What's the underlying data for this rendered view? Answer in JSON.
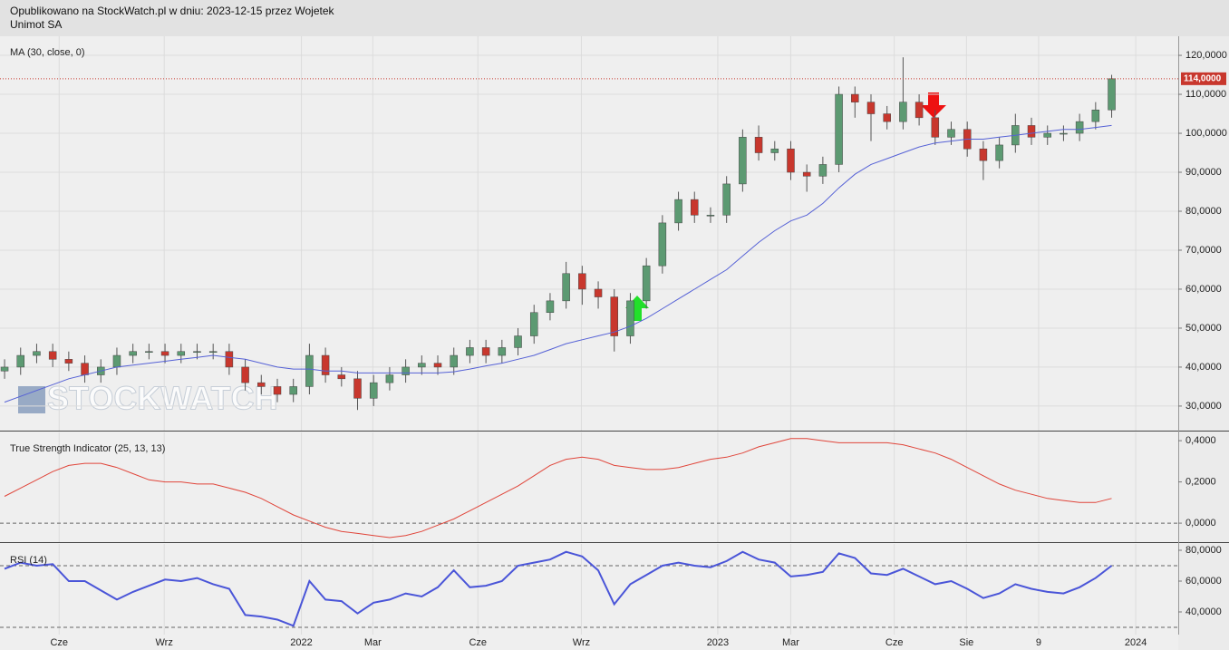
{
  "header": {
    "published": "Opublikowano na StockWatch.pl w dniu: 2023-12-15 przez Wojetek",
    "instrument": "Unimot SA"
  },
  "watermark": "STOCKWATCH",
  "chart_data": [
    {
      "type": "candlestick",
      "title": "MA (30, close, 0)",
      "x": [
        0,
        2,
        4,
        6,
        8,
        10,
        12,
        14,
        16,
        18,
        20,
        22,
        24,
        26,
        28,
        30,
        32,
        34,
        36,
        38,
        40,
        42,
        44,
        46,
        48,
        50,
        52,
        54,
        56,
        58,
        60,
        62,
        64,
        66,
        68,
        70,
        72,
        74,
        76,
        78,
        80,
        82,
        84,
        86,
        88,
        90,
        92,
        94,
        96,
        98,
        100,
        102,
        104,
        106,
        108,
        110,
        112,
        114,
        116,
        118,
        120,
        122,
        124,
        126,
        128,
        130,
        132,
        134,
        136,
        138
      ],
      "open": [
        39000,
        40000,
        43000,
        44000,
        42000,
        41000,
        38000,
        40000,
        43000,
        44000,
        44000,
        43000,
        44000,
        44000,
        44000,
        40000,
        36000,
        35000,
        33000,
        35000,
        43000,
        38000,
        37000,
        32000,
        36000,
        38000,
        40000,
        41000,
        40000,
        43000,
        45000,
        43000,
        45000,
        48000,
        54000,
        57000,
        64000,
        60000,
        58000,
        48000,
        57000,
        66000,
        77000,
        83000,
        79000,
        79000,
        87000,
        99000,
        95000,
        96000,
        90000,
        89000,
        92000,
        110000,
        108000,
        105000,
        103000,
        108000,
        104000,
        99000,
        101000,
        96000,
        93000,
        97000,
        102000,
        99000,
        100000,
        100000,
        103000,
        106000
      ],
      "high": [
        42000,
        45000,
        46000,
        46000,
        44000,
        43000,
        42000,
        45000,
        46000,
        46000,
        46000,
        46000,
        46000,
        46000,
        46000,
        42000,
        38000,
        37000,
        37000,
        46000,
        45000,
        40000,
        39000,
        38000,
        40000,
        42000,
        43000,
        43000,
        45000,
        47000,
        47000,
        47000,
        50000,
        56000,
        59000,
        67000,
        66000,
        62000,
        60000,
        59000,
        68000,
        79000,
        85000,
        85000,
        81000,
        89000,
        101000,
        102000,
        98000,
        98000,
        92000,
        94000,
        112000,
        112000,
        110000,
        107000,
        119500,
        110000,
        106000,
        103000,
        103000,
        98000,
        99000,
        105000,
        104000,
        102000,
        102000,
        105000,
        108000,
        115000
      ],
      "low": [
        37000,
        38000,
        41000,
        40000,
        39000,
        36000,
        36000,
        38000,
        41000,
        42000,
        41000,
        41000,
        42000,
        42000,
        38000,
        34000,
        33000,
        31000,
        31000,
        33000,
        36000,
        35000,
        29000,
        30000,
        34000,
        36000,
        38000,
        38000,
        38000,
        41000,
        41000,
        41000,
        43000,
        46000,
        52000,
        55000,
        56000,
        55000,
        44000,
        46000,
        55000,
        64000,
        75000,
        77000,
        77000,
        77000,
        85000,
        93000,
        93000,
        88000,
        85000,
        87000,
        90000,
        104000,
        98000,
        101000,
        101000,
        102000,
        97000,
        97000,
        94000,
        88000,
        91000,
        95000,
        97000,
        97000,
        98000,
        98000,
        101000,
        104000
      ],
      "close": [
        40000,
        43000,
        44000,
        42000,
        41000,
        38000,
        40000,
        43000,
        44000,
        44000,
        43000,
        44000,
        44000,
        44000,
        40000,
        36000,
        35000,
        33000,
        35000,
        43000,
        38000,
        37000,
        32000,
        36000,
        38000,
        40000,
        41000,
        40000,
        43000,
        45000,
        43000,
        45000,
        48000,
        54000,
        57000,
        64000,
        60000,
        58000,
        48000,
        57000,
        66000,
        77000,
        83000,
        79000,
        79000,
        87000,
        99000,
        95000,
        96000,
        90000,
        89000,
        92000,
        110000,
        108000,
        105000,
        103000,
        108000,
        104000,
        99000,
        101000,
        96000,
        93000,
        97000,
        102000,
        99000,
        100000,
        100000,
        103000,
        106000,
        114000
      ],
      "last_label": "114,0000",
      "up_color": "#5c9a72",
      "down_color": "#c8372d",
      "ma": {
        "color": "#5561d6",
        "values": [
          31000,
          32500,
          34000,
          35500,
          37000,
          38000,
          39000,
          40000,
          40500,
          41000,
          41500,
          42000,
          42500,
          43000,
          42500,
          42000,
          41000,
          40000,
          39500,
          39500,
          39000,
          39000,
          38500,
          38500,
          38500,
          38500,
          38500,
          38500,
          38800,
          39500,
          40300,
          41000,
          42000,
          43000,
          44500,
          46000,
          47000,
          48000,
          49000,
          50500,
          52500,
          55000,
          57500,
          60000,
          62500,
          65000,
          68500,
          72000,
          75000,
          77500,
          79000,
          82000,
          86000,
          89500,
          92000,
          93500,
          95000,
          96500,
          97500,
          98000,
          98500,
          98500,
          99000,
          99500,
          100000,
          100500,
          101000,
          101000,
          101500,
          102000
        ]
      },
      "xlim": [
        -0.57,
        146.3
      ],
      "ylim": [
        23700,
        124900
      ],
      "grid": true,
      "yticks": [
        {
          "value": 30000,
          "label": "30,0000"
        },
        {
          "value": 40000,
          "label": "40,0000"
        },
        {
          "value": 50000,
          "label": "50,0000"
        },
        {
          "value": 60000,
          "label": "60,0000"
        },
        {
          "value": 70000,
          "label": "70,0000"
        },
        {
          "value": 80000,
          "label": "80,0000"
        },
        {
          "value": 90000,
          "label": "90,0000"
        },
        {
          "value": 100000,
          "label": "100,0000"
        },
        {
          "value": 110000,
          "label": "110,0000"
        },
        {
          "value": 120000,
          "label": "120,0000"
        }
      ]
    },
    {
      "type": "line",
      "title": "True Strength Indicator (25, 13, 13)",
      "x": [
        0,
        2,
        4,
        6,
        8,
        10,
        12,
        14,
        16,
        18,
        20,
        22,
        24,
        26,
        28,
        30,
        32,
        34,
        36,
        38,
        40,
        42,
        44,
        46,
        48,
        50,
        52,
        54,
        56,
        58,
        60,
        62,
        64,
        66,
        68,
        70,
        72,
        74,
        76,
        78,
        80,
        82,
        84,
        86,
        88,
        90,
        92,
        94,
        96,
        98,
        100,
        102,
        104,
        106,
        108,
        110,
        112,
        114,
        116,
        118,
        120,
        122,
        124,
        126,
        128,
        130,
        132,
        134,
        136,
        138
      ],
      "series": [
        {
          "color": "#e0453a",
          "values": [
            0.13,
            0.17,
            0.21,
            0.25,
            0.28,
            0.29,
            0.29,
            0.27,
            0.24,
            0.21,
            0.2,
            0.2,
            0.19,
            0.19,
            0.17,
            0.15,
            0.12,
            0.08,
            0.04,
            0.01,
            -0.02,
            -0.04,
            -0.05,
            -0.06,
            -0.07,
            -0.06,
            -0.04,
            -0.01,
            0.02,
            0.06,
            0.1,
            0.14,
            0.18,
            0.23,
            0.28,
            0.31,
            0.32,
            0.31,
            0.28,
            0.27,
            0.26,
            0.26,
            0.27,
            0.29,
            0.31,
            0.32,
            0.34,
            0.37,
            0.39,
            0.41,
            0.41,
            0.4,
            0.39,
            0.39,
            0.39,
            0.39,
            0.38,
            0.36,
            0.34,
            0.31,
            0.27,
            0.23,
            0.19,
            0.16,
            0.14,
            0.12,
            0.11,
            0.1,
            0.1,
            0.12
          ]
        }
      ],
      "hlines": [
        0
      ],
      "xlim": [
        -0.57,
        146.3
      ],
      "ylim": [
        -0.092,
        0.44
      ],
      "yticks": [
        {
          "value": 0,
          "label": "0,0000"
        },
        {
          "value": 0.2,
          "label": "0,2000"
        },
        {
          "value": 0.4,
          "label": "0,4000"
        }
      ]
    },
    {
      "type": "line",
      "title": "RSI (14)",
      "x": [
        0,
        2,
        4,
        6,
        8,
        10,
        12,
        14,
        16,
        18,
        20,
        22,
        24,
        26,
        28,
        30,
        32,
        34,
        36,
        38,
        40,
        42,
        44,
        46,
        48,
        50,
        52,
        54,
        56,
        58,
        60,
        62,
        64,
        66,
        68,
        70,
        72,
        74,
        76,
        78,
        80,
        82,
        84,
        86,
        88,
        90,
        92,
        94,
        96,
        98,
        100,
        102,
        104,
        106,
        108,
        110,
        112,
        114,
        116,
        118,
        120,
        122,
        124,
        126,
        128,
        130,
        132,
        134,
        136,
        138
      ],
      "series": [
        {
          "color": "#4a55d8",
          "values": [
            68,
            72,
            70,
            71,
            60,
            60,
            54,
            48,
            53,
            57,
            61,
            60,
            62,
            58,
            55,
            38,
            37,
            35,
            31,
            60,
            48,
            47,
            39,
            46,
            48,
            52,
            50,
            56,
            67,
            56,
            57,
            60,
            70,
            72,
            74,
            79,
            76,
            67,
            45,
            58,
            64,
            70,
            72,
            70,
            69,
            73,
            79,
            74,
            72,
            63,
            64,
            66,
            78,
            75,
            65,
            64,
            68,
            63,
            58,
            60,
            55,
            49,
            52,
            58,
            55,
            53,
            52,
            56,
            62,
            70
          ]
        }
      ],
      "hlines": [
        30,
        70
      ],
      "xlim": [
        -0.57,
        146.3
      ],
      "ylim": [
        25.3,
        84.1
      ],
      "yticks": [
        {
          "value": 40,
          "label": "40,0000"
        },
        {
          "value": 60,
          "label": "60,0000"
        },
        {
          "value": 80,
          "label": "80,0000"
        }
      ],
      "xticks": [
        {
          "value": 6.8,
          "label": "Cze"
        },
        {
          "value": 19.9,
          "label": "Wrz"
        },
        {
          "value": 37,
          "label": "2022"
        },
        {
          "value": 45.9,
          "label": "Mar"
        },
        {
          "value": 59,
          "label": "Cze"
        },
        {
          "value": 71.9,
          "label": "Wrz"
        },
        {
          "value": 88.9,
          "label": "2023"
        },
        {
          "value": 98,
          "label": "Mar"
        },
        {
          "value": 110.9,
          "label": "Cze"
        },
        {
          "value": 119.9,
          "label": "Sie"
        },
        {
          "value": 128.9,
          "label": "9"
        },
        {
          "value": 141,
          "label": "2024"
        }
      ]
    }
  ]
}
